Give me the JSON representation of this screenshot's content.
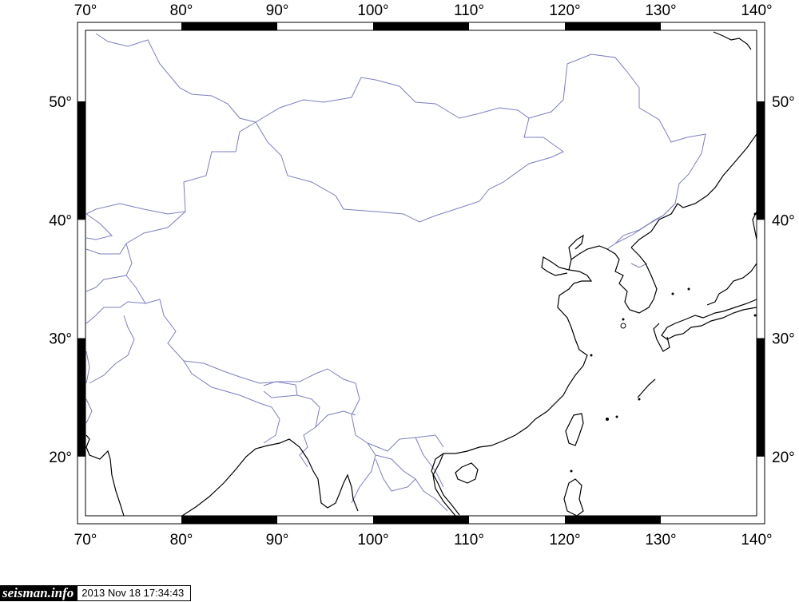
{
  "map": {
    "projection": "linear lon/lat",
    "lon_range": [
      70,
      140
    ],
    "lat_range": [
      15,
      56
    ],
    "colors": {
      "coastline": "#000000",
      "border": "#7b7fc2",
      "frame": "#000000"
    },
    "lon_labels": [
      "70°",
      "80°",
      "90°",
      "100°",
      "110°",
      "120°",
      "130°",
      "140°"
    ],
    "lat_labels": [
      "20°",
      "30°",
      "40°",
      "50°"
    ]
  },
  "stamp": {
    "logo": "seisman.info",
    "timestamp": "2013 Nov 18 17:34:43"
  }
}
